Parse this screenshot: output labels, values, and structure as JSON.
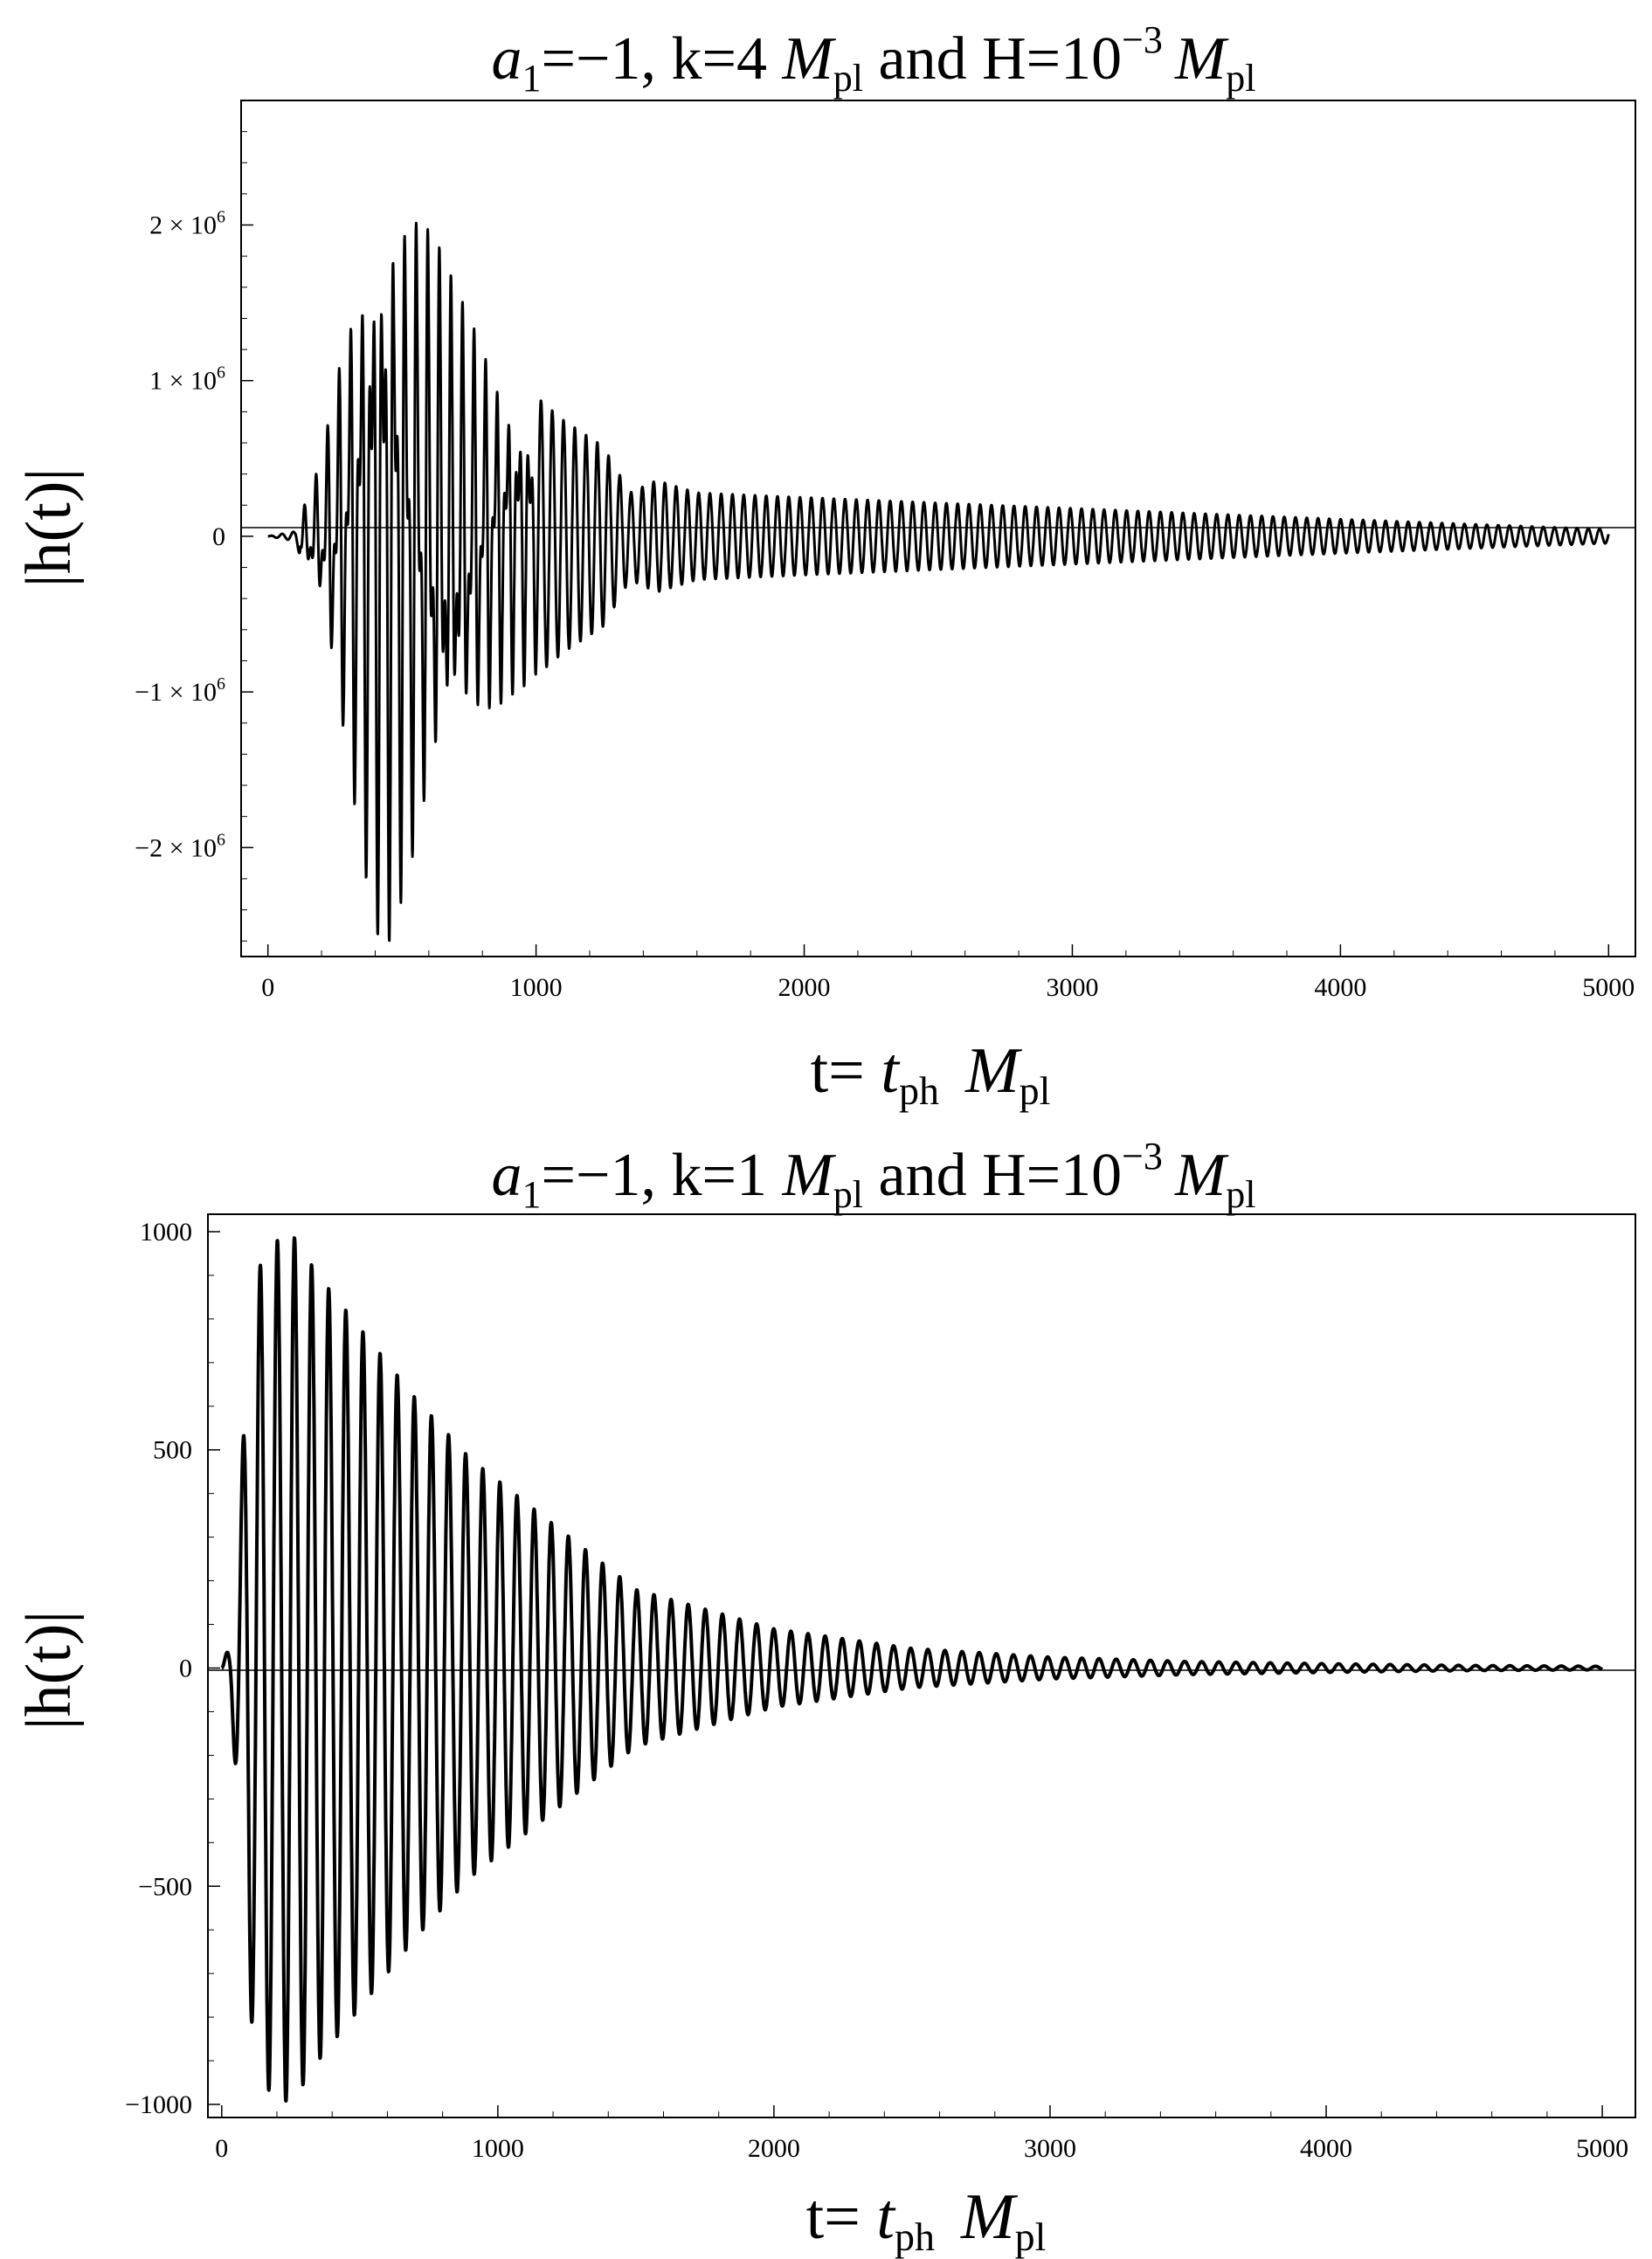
{
  "chart_data": [
    {
      "type": "line",
      "title": {
        "a_sym": "a",
        "a_sub": "1",
        "a_eq": "=−1, k=4 ",
        "m_sym": "M",
        "m_sub": "pl",
        "mid": " and  H=10",
        "exp": "−3",
        "m2_sym": "M",
        "m2_sub": "pl"
      },
      "ylabel": "|h(t)|",
      "xlabel": {
        "t": "t= ",
        "tph": "t",
        "tph_sub": "ph",
        "m": "M",
        "m_sub": "pl"
      },
      "xlim": [
        -100,
        5100
      ],
      "ylim": [
        -2700000.0,
        2800000.0
      ],
      "xticks": [
        0,
        1000,
        2000,
        3000,
        4000,
        5000
      ],
      "xtick_labels": [
        "0",
        "1000",
        "2000",
        "3000",
        "4000",
        "5000"
      ],
      "yticks": [
        2000000.0,
        1000000.0,
        0,
        -1000000.0,
        -2000000.0
      ],
      "ytick_labels": [
        "2 × 10^6",
        "1 × 10^6",
        "0",
        "−1 × 10^6",
        "−2 × 10^6"
      ],
      "grid": false,
      "envelope": [
        [
          0,
          0
        ],
        [
          100,
          30000
        ],
        [
          200,
          500000
        ],
        [
          300,
          1600000
        ],
        [
          400,
          2550000
        ],
        [
          450,
          2650000
        ],
        [
          550,
          2300000
        ],
        [
          700,
          1600000
        ],
        [
          900,
          1050000
        ],
        [
          1100,
          750000
        ],
        [
          1250,
          580000
        ],
        [
          1350,
          280000
        ],
        [
          1450,
          360000
        ],
        [
          1600,
          280000
        ],
        [
          2000,
          250000
        ],
        [
          3000,
          180000
        ],
        [
          4000,
          110000
        ],
        [
          5000,
          45000
        ]
      ],
      "period": 42
    },
    {
      "type": "line",
      "title": {
        "a_sym": "a",
        "a_sub": "1",
        "a_eq": "=−1, k=1 ",
        "m_sym": "M",
        "m_sub": "pl",
        "mid": " and  H=10",
        "exp": "−3",
        "m2_sym": "M",
        "m2_sub": "pl"
      },
      "ylabel": "|h(t)|",
      "xlabel": {
        "t": "t= ",
        "tph": "t",
        "tph_sub": "ph",
        "m": "M",
        "m_sub": "pl"
      },
      "xlim": [
        -50,
        5120
      ],
      "ylim": [
        -1030,
        1040
      ],
      "xticks": [
        0,
        1000,
        2000,
        3000,
        4000,
        5000
      ],
      "xtick_labels": [
        "0",
        "1000",
        "2000",
        "3000",
        "4000",
        "5000"
      ],
      "yticks": [
        1000,
        500,
        0,
        -500,
        -1000
      ],
      "ytick_labels": [
        "1000",
        "500",
        "0",
        "−500",
        "−1000"
      ],
      "grid": false,
      "envelope": [
        [
          0,
          0
        ],
        [
          30,
          60
        ],
        [
          60,
          320
        ],
        [
          100,
          780
        ],
        [
          150,
          960
        ],
        [
          250,
          1000
        ],
        [
          350,
          900
        ],
        [
          500,
          780
        ],
        [
          700,
          620
        ],
        [
          900,
          480
        ],
        [
          1200,
          330
        ],
        [
          1500,
          180
        ],
        [
          2000,
          90
        ],
        [
          2500,
          45
        ],
        [
          3000,
          25
        ],
        [
          3500,
          15
        ],
        [
          4000,
          10
        ],
        [
          4500,
          6
        ],
        [
          5000,
          4
        ]
      ],
      "period": 62
    }
  ]
}
